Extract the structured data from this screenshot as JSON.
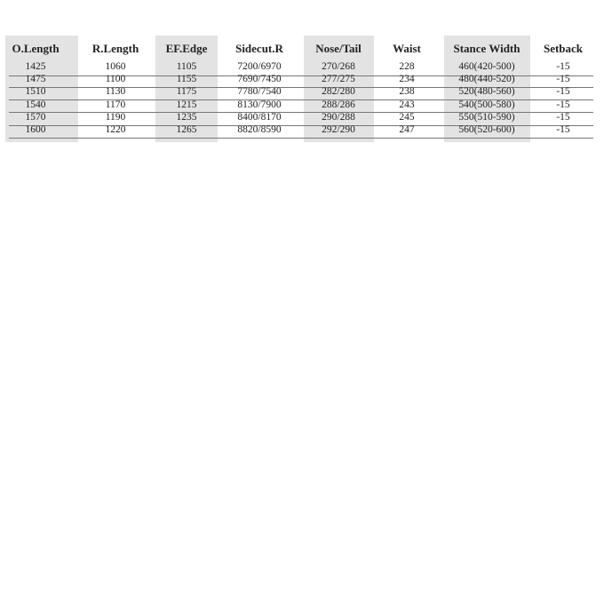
{
  "table": {
    "headers": [
      "O.Length",
      "R.Length",
      "EF.Edge",
      "Sidecut.R",
      "Nose/Tail",
      "Waist",
      "Stance Width",
      "Setback"
    ],
    "rows": [
      [
        "1425",
        "1060",
        "1105",
        "7200/6970",
        "270/268",
        "228",
        "460(420-500)",
        "-15"
      ],
      [
        "1475",
        "1100",
        "1155",
        "7690/7450",
        "277/275",
        "234",
        "480(440-520)",
        "-15"
      ],
      [
        "1510",
        "1130",
        "1175",
        "7780/7540",
        "282/280",
        "238",
        "520(480-560)",
        "-15"
      ],
      [
        "1540",
        "1170",
        "1215",
        "8130/7900",
        "288/286",
        "243",
        "540(500-580)",
        "-15"
      ],
      [
        "1570",
        "1190",
        "1235",
        "8400/8170",
        "290/288",
        "245",
        "550(510-590)",
        "-15"
      ],
      [
        "1600",
        "1220",
        "1265",
        "8820/8590",
        "292/290",
        "247",
        "560(520-600)",
        "-15"
      ]
    ],
    "shaded_column_color": "#e3e3e3"
  }
}
